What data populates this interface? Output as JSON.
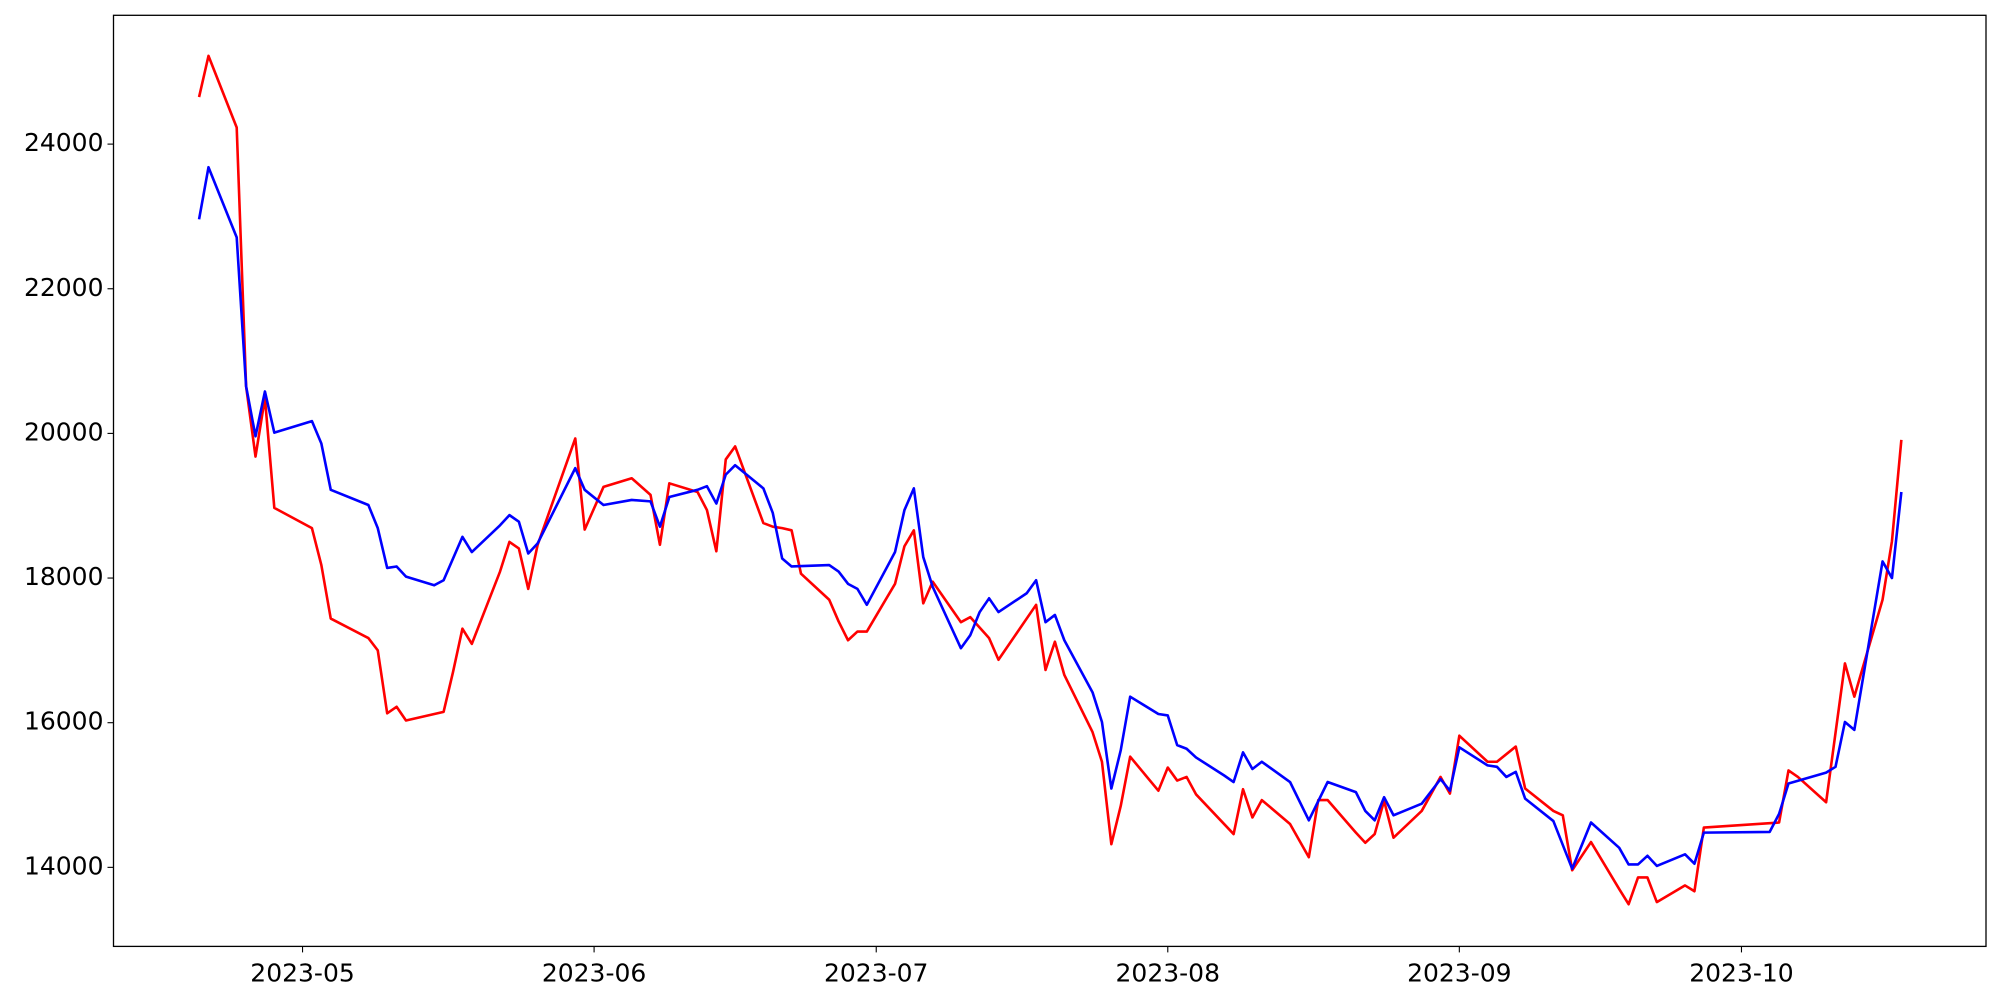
{
  "chart_data": {
    "type": "line",
    "xlim": [
      -9.1,
      190.0
    ],
    "xticks": [
      {
        "value": 11,
        "label": "2023-05"
      },
      {
        "value": 42,
        "label": "2023-06"
      },
      {
        "value": 72,
        "label": "2023-07"
      },
      {
        "value": 103,
        "label": "2023-08"
      },
      {
        "value": 134,
        "label": "2023-09"
      },
      {
        "value": 164,
        "label": "2023-10"
      }
    ],
    "ylim": [
      12907,
      25781
    ],
    "yticks": [
      14000,
      16000,
      18000,
      20000,
      22000,
      24000
    ],
    "grid": false,
    "series": [
      {
        "color": "#ff0000",
        "x": [
          0,
          1,
          4,
          5,
          6,
          7,
          8,
          12,
          13,
          14,
          18,
          19,
          20,
          21,
          22,
          26,
          27,
          28,
          29,
          32,
          33,
          34,
          35,
          36,
          40,
          41,
          43,
          46,
          48,
          49,
          50,
          53,
          54,
          55,
          56,
          57,
          60,
          61,
          62,
          63,
          64,
          67,
          68,
          69,
          70,
          71,
          74,
          75,
          76,
          77,
          78,
          81,
          82,
          84,
          85,
          89,
          90,
          91,
          92,
          95,
          96,
          97,
          98,
          99,
          102,
          103,
          104,
          105,
          106,
          110,
          111,
          112,
          113,
          116,
          118,
          119,
          120,
          123,
          124,
          125,
          126,
          127,
          130,
          132,
          133,
          134,
          137,
          138,
          140,
          141,
          144,
          145,
          146,
          148,
          151,
          152,
          153,
          154,
          155,
          158,
          159,
          160,
          168,
          169,
          170,
          173,
          175,
          176,
          179,
          180,
          181
        ],
        "values": [
          24650,
          25220,
          24230,
          20650,
          19680,
          20490,
          18970,
          18690,
          18180,
          17440,
          17170,
          17000,
          16130,
          16220,
          16030,
          16150,
          16700,
          17300,
          17090,
          18090,
          18500,
          18410,
          17850,
          18460,
          19930,
          18670,
          19260,
          19380,
          19150,
          18460,
          19310,
          19190,
          18940,
          18370,
          19640,
          19820,
          18760,
          18710,
          18690,
          18660,
          18060,
          17700,
          17400,
          17140,
          17260,
          17260,
          17920,
          18440,
          18660,
          17650,
          17950,
          17390,
          17460,
          17170,
          16870,
          17630,
          16730,
          17120,
          16660,
          15870,
          15460,
          14320,
          14850,
          15530,
          15060,
          15380,
          15200,
          15250,
          15010,
          14460,
          15080,
          14690,
          14930,
          14600,
          14140,
          14930,
          14930,
          14480,
          14340,
          14460,
          14920,
          14410,
          14780,
          15250,
          15020,
          15820,
          15460,
          15460,
          15670,
          15090,
          14780,
          14720,
          13960,
          14350,
          13700,
          13490,
          13860,
          13860,
          13520,
          13750,
          13670,
          14550,
          14620,
          15340,
          15250,
          14900,
          16820,
          16360,
          17700,
          18510,
          19910
        ]
      },
      {
        "color": "#0000ff",
        "x": [
          0,
          1,
          4,
          5,
          6,
          7,
          8,
          12,
          13,
          14,
          18,
          19,
          20,
          21,
          22,
          25,
          26,
          28,
          29,
          32,
          33,
          34,
          35,
          36,
          40,
          41,
          43,
          46,
          48,
          49,
          50,
          53,
          54,
          55,
          56,
          57,
          60,
          61,
          62,
          63,
          67,
          68,
          69,
          70,
          71,
          74,
          75,
          76,
          77,
          78,
          81,
          82,
          83,
          84,
          85,
          88,
          89,
          90,
          91,
          92,
          95,
          96,
          97,
          98,
          99,
          102,
          103,
          104,
          105,
          106,
          109,
          110,
          111,
          112,
          113,
          116,
          118,
          120,
          123,
          124,
          125,
          126,
          127,
          130,
          132,
          133,
          134,
          137,
          138,
          139,
          140,
          141,
          144,
          146,
          148,
          151,
          152,
          153,
          154,
          155,
          158,
          159,
          160,
          167,
          168,
          169,
          173,
          174,
          175,
          176,
          179,
          180,
          181
        ],
        "values": [
          22960,
          23680,
          22710,
          20650,
          19960,
          20580,
          20010,
          20170,
          19860,
          19220,
          19010,
          18690,
          18140,
          18160,
          18020,
          17900,
          17970,
          18570,
          18360,
          18730,
          18870,
          18780,
          18340,
          18480,
          19520,
          19220,
          19010,
          19080,
          19060,
          18710,
          19120,
          19220,
          19270,
          19030,
          19430,
          19560,
          19240,
          18900,
          18270,
          18160,
          18180,
          18090,
          17920,
          17850,
          17630,
          18360,
          18940,
          19240,
          18290,
          17880,
          17030,
          17210,
          17530,
          17720,
          17530,
          17790,
          17970,
          17390,
          17490,
          17140,
          16420,
          16010,
          15090,
          15620,
          16360,
          16120,
          16100,
          15690,
          15640,
          15520,
          15270,
          15180,
          15590,
          15360,
          15460,
          15180,
          14650,
          15180,
          15040,
          14780,
          14650,
          14970,
          14720,
          14880,
          15220,
          15060,
          15660,
          15410,
          15390,
          15250,
          15320,
          14950,
          14640,
          13980,
          14620,
          14270,
          14040,
          14040,
          14160,
          14020,
          14180,
          14050,
          14480,
          14490,
          14740,
          15160,
          15310,
          15390,
          16010,
          15900,
          18230,
          18000,
          19190
        ]
      }
    ]
  }
}
